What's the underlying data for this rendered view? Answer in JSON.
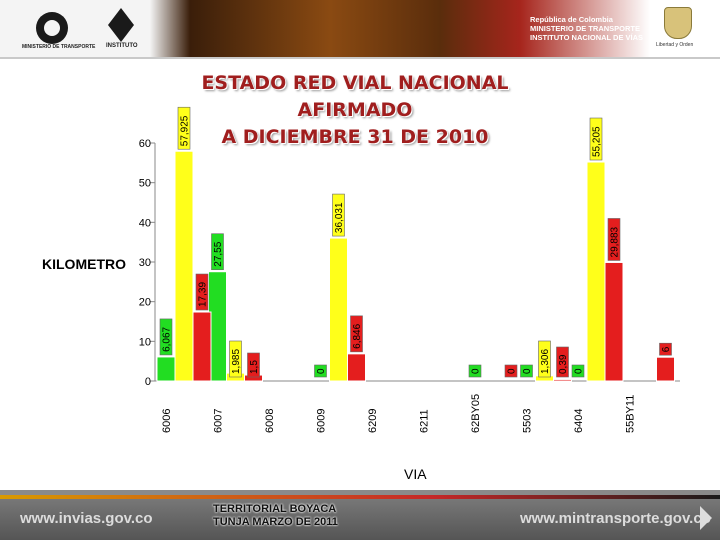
{
  "header": {
    "ministry_logo_label": "MINISTERIO DE TRANSPORTE",
    "institute_logo_label": "INSTITUTO",
    "gov_line1": "República de Colombia",
    "gov_line2": "MINISTERIO DE TRANSPORTE",
    "gov_line3": "INSTITUTO NACIONAL DE VÍAS",
    "motto": "Libertad y Orden"
  },
  "footer": {
    "left_url": "www.invias.gov.co",
    "right_url": "www.mintransporte.gov.co",
    "caption": "TERRITORIAL BOYACA\nTUNJA MARZO DE 2011"
  },
  "colors": {
    "green": "#22dd22",
    "yellow": "#ffff1a",
    "red": "#e41e1e",
    "title": "#a01e1e"
  },
  "chart_data": {
    "type": "bar",
    "title": "ESTADO RED VIAL NACIONAL\nAFIRMADO\nA DICIEMBRE 31 DE 2010",
    "xlabel": "VIA",
    "ylabel": "KILOMETRO",
    "ylim": [
      0,
      60
    ],
    "yticks": [
      0,
      10,
      20,
      30,
      40,
      50,
      60
    ],
    "categories": [
      "6006",
      "6007",
      "6008",
      "6009",
      "6209",
      "6211",
      "62BY05",
      "5503",
      "6404",
      "55BY11"
    ],
    "series": [
      {
        "name": "green",
        "color": "#22dd22",
        "values": [
          6.067,
          27.55,
          null,
          0,
          null,
          null,
          0,
          0,
          0,
          null
        ]
      },
      {
        "name": "yellow",
        "color": "#ffff1a",
        "values": [
          57.925,
          1.985,
          null,
          36.031,
          null,
          null,
          null,
          1.306,
          55.205,
          null
        ]
      },
      {
        "name": "red",
        "color": "#e41e1e",
        "values": [
          17.39,
          1.5,
          null,
          6.846,
          null,
          null,
          0,
          0.39,
          29.883,
          6
        ]
      }
    ],
    "labels": [
      [
        "6,067",
        "57,925",
        "17,39"
      ],
      [
        "27,55",
        "1,985",
        "1,5"
      ],
      [
        "",
        "",
        ""
      ],
      [
        "0",
        "36,031",
        "6,846"
      ],
      [
        "",
        "",
        ""
      ],
      [
        "",
        "",
        ""
      ],
      [
        "0",
        "",
        "0"
      ],
      [
        "0",
        "1,306",
        "0,39"
      ],
      [
        "0",
        "55,205",
        "29,883"
      ],
      [
        "",
        "",
        "6"
      ]
    ]
  }
}
